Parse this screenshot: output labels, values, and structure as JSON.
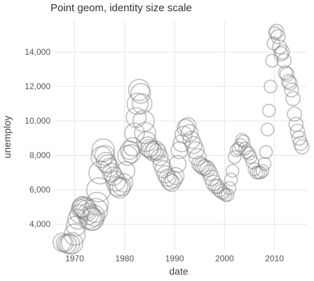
{
  "chart_data": {
    "type": "scatter",
    "title": "Point geom, identity size scale",
    "xlabel": "date",
    "ylabel": "unemploy",
    "x_ticks": [
      "1970",
      "1980",
      "1990",
      "2000",
      "2010"
    ],
    "y_ticks": [
      "4,000",
      "6,000",
      "8,000",
      "10,000",
      "12,000",
      "14,000"
    ],
    "xlim": [
      1966.0,
      2016.5
    ],
    "ylim": [
      2500,
      15800
    ],
    "grid": true,
    "legend": "none",
    "point_color": "#808080",
    "point_fill": "none",
    "point_opacity": 0.5,
    "series": [
      {
        "points": [
          [
            1967.5,
            2950,
            13
          ],
          [
            1968.0,
            2900,
            12
          ],
          [
            1968.5,
            2850,
            13
          ],
          [
            1969.0,
            2850,
            14
          ],
          [
            1969.5,
            2900,
            15
          ],
          [
            1970.0,
            3400,
            15
          ],
          [
            1970.3,
            3900,
            14
          ],
          [
            1970.6,
            4300,
            14
          ],
          [
            1970.9,
            4600,
            13
          ],
          [
            1971.2,
            4900,
            13
          ],
          [
            1971.5,
            5000,
            14
          ],
          [
            1971.8,
            5000,
            15
          ],
          [
            1972.1,
            4900,
            15
          ],
          [
            1972.4,
            4800,
            15
          ],
          [
            1972.7,
            4600,
            15
          ],
          [
            1973.0,
            4400,
            16
          ],
          [
            1973.3,
            4300,
            16
          ],
          [
            1973.6,
            4300,
            16
          ],
          [
            1973.9,
            4500,
            15
          ],
          [
            1974.2,
            4800,
            17
          ],
          [
            1974.5,
            5200,
            16
          ],
          [
            1974.8,
            6000,
            17
          ],
          [
            1975.1,
            7000,
            16
          ],
          [
            1975.4,
            7900,
            15
          ],
          [
            1975.7,
            8300,
            16
          ],
          [
            1976.0,
            8000,
            14
          ],
          [
            1976.3,
            7600,
            14
          ],
          [
            1976.6,
            7500,
            13
          ],
          [
            1977.0,
            7300,
            13
          ],
          [
            1977.4,
            7000,
            13
          ],
          [
            1977.8,
            6800,
            13
          ],
          [
            1978.2,
            6500,
            14
          ],
          [
            1978.6,
            6200,
            14
          ],
          [
            1979.0,
            6100,
            14
          ],
          [
            1979.4,
            6200,
            13
          ],
          [
            1979.8,
            6400,
            13
          ],
          [
            1980.2,
            7100,
            13
          ],
          [
            1980.6,
            8000,
            14
          ],
          [
            1981.0,
            8300,
            13
          ],
          [
            1981.3,
            8100,
            13
          ],
          [
            1981.6,
            8500,
            13
          ],
          [
            1982.0,
            9300,
            14
          ],
          [
            1982.3,
            10200,
            14
          ],
          [
            1982.6,
            11000,
            15
          ],
          [
            1982.9,
            11800,
            15
          ],
          [
            1983.2,
            11600,
            14
          ],
          [
            1983.5,
            11000,
            14
          ],
          [
            1983.8,
            10000,
            15
          ],
          [
            1984.1,
            9300,
            15
          ],
          [
            1984.4,
            8800,
            14
          ],
          [
            1984.7,
            8500,
            14
          ],
          [
            1985.0,
            8400,
            13
          ],
          [
            1985.4,
            8300,
            13
          ],
          [
            1985.8,
            8200,
            13
          ],
          [
            1986.2,
            8300,
            13
          ],
          [
            1986.6,
            8200,
            12
          ],
          [
            1987.0,
            7900,
            12
          ],
          [
            1987.4,
            7500,
            12
          ],
          [
            1987.8,
            7200,
            12
          ],
          [
            1988.2,
            6900,
            12
          ],
          [
            1988.6,
            6700,
            12
          ],
          [
            1989.0,
            6500,
            12
          ],
          [
            1989.4,
            6400,
            12
          ],
          [
            1989.8,
            6600,
            12
          ],
          [
            1990.2,
            6800,
            12
          ],
          [
            1990.6,
            7500,
            12
          ],
          [
            1991.0,
            8300,
            12
          ],
          [
            1991.4,
            8700,
            12
          ],
          [
            1991.8,
            9200,
            12
          ],
          [
            1992.2,
            9600,
            12
          ],
          [
            1992.6,
            9700,
            12
          ],
          [
            1993.0,
            9300,
            12
          ],
          [
            1993.4,
            8900,
            12
          ],
          [
            1993.8,
            8600,
            12
          ],
          [
            1994.2,
            8300,
            12
          ],
          [
            1994.6,
            7900,
            12
          ],
          [
            1995.0,
            7500,
            11
          ],
          [
            1995.4,
            7400,
            11
          ],
          [
            1995.8,
            7300,
            11
          ],
          [
            1996.2,
            7300,
            11
          ],
          [
            1996.6,
            7200,
            11
          ],
          [
            1997.0,
            7000,
            11
          ],
          [
            1997.4,
            6700,
            11
          ],
          [
            1997.8,
            6400,
            11
          ],
          [
            1998.2,
            6200,
            10
          ],
          [
            1998.6,
            6200,
            10
          ],
          [
            1999.0,
            6000,
            10
          ],
          [
            1999.4,
            5900,
            10
          ],
          [
            1999.8,
            5800,
            9
          ],
          [
            2000.2,
            5700,
            9
          ],
          [
            2000.6,
            5700,
            9
          ],
          [
            2001.0,
            6100,
            9
          ],
          [
            2001.3,
            6600,
            9
          ],
          [
            2001.6,
            7100,
            9
          ],
          [
            2002.0,
            7900,
            9
          ],
          [
            2002.4,
            8300,
            9
          ],
          [
            2002.8,
            8400,
            9
          ],
          [
            2003.2,
            8600,
            9
          ],
          [
            2003.5,
            8900,
            9
          ],
          [
            2003.8,
            8800,
            9
          ],
          [
            2004.1,
            8400,
            9
          ],
          [
            2004.5,
            8200,
            9
          ],
          [
            2004.9,
            8100,
            9
          ],
          [
            2005.2,
            7900,
            9
          ],
          [
            2005.6,
            7600,
            9
          ],
          [
            2006.0,
            7200,
            9
          ],
          [
            2006.4,
            7000,
            9
          ],
          [
            2006.8,
            7000,
            9
          ],
          [
            2007.2,
            7000,
            9
          ],
          [
            2007.6,
            7100,
            9
          ],
          [
            2008.0,
            7500,
            9
          ],
          [
            2008.3,
            8200,
            9
          ],
          [
            2008.6,
            9500,
            9
          ],
          [
            2008.9,
            10600,
            9
          ],
          [
            2009.2,
            12000,
            9
          ],
          [
            2009.5,
            13500,
            9
          ],
          [
            2009.8,
            14500,
            9
          ],
          [
            2010.1,
            15100,
            9
          ],
          [
            2010.4,
            15200,
            10
          ],
          [
            2010.7,
            14900,
            10
          ],
          [
            2011.0,
            14300,
            10
          ],
          [
            2011.3,
            13900,
            10
          ],
          [
            2011.6,
            14000,
            10
          ],
          [
            2011.9,
            13500,
            10
          ],
          [
            2012.2,
            12800,
            10
          ],
          [
            2012.5,
            12700,
            10
          ],
          [
            2012.8,
            12300,
            10
          ],
          [
            2013.1,
            12200,
            10
          ],
          [
            2013.4,
            11800,
            10
          ],
          [
            2013.7,
            11300,
            10
          ],
          [
            2014.0,
            10400,
            10
          ],
          [
            2014.3,
            9800,
            10
          ],
          [
            2014.6,
            9400,
            10
          ],
          [
            2014.9,
            9000,
            10
          ],
          [
            2015.2,
            8700,
            10
          ],
          [
            2015.5,
            8500,
            10
          ]
        ]
      }
    ]
  }
}
